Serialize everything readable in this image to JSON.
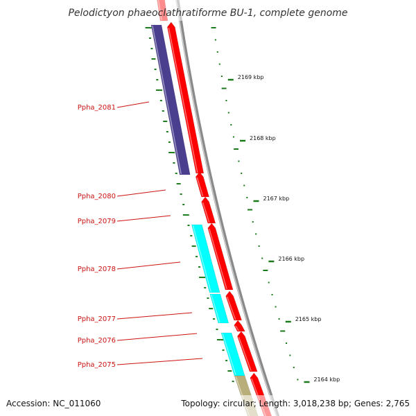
{
  "title": "Pelodictyon phaeoclathratiforme BU-1, complete genome",
  "footer": {
    "accession": "Accession: NC_011060",
    "topology": "Topology: circular; Length: 3,018,238 bp; Genes: 2,765"
  },
  "colors": {
    "forward_cds": "#ff0000",
    "reverse_cds_blue": "#4a3f8f",
    "reverse_cds_cyan": "#00ffff",
    "reverse_cds_khaki": "#b8ae7a",
    "backbone": "#8a8a8a",
    "gc_dash": "#1a7a1a",
    "gene_label": "#cc1111"
  },
  "scale_ticks": [
    {
      "label": "2169 kbp",
      "kbp": 2169
    },
    {
      "label": "2168 kbp",
      "kbp": 2168
    },
    {
      "label": "2167 kbp",
      "kbp": 2167
    },
    {
      "label": "2166 kbp",
      "kbp": 2166
    },
    {
      "label": "2165 kbp",
      "kbp": 2165
    },
    {
      "label": "2164 kbp",
      "kbp": 2164
    }
  ],
  "gene_labels": [
    {
      "name": "Ppha_2081"
    },
    {
      "name": "Ppha_2080"
    },
    {
      "name": "Ppha_2079"
    },
    {
      "name": "Ppha_2078"
    },
    {
      "name": "Ppha_2077"
    },
    {
      "name": "Ppha_2076"
    },
    {
      "name": "Ppha_2075"
    }
  ]
}
